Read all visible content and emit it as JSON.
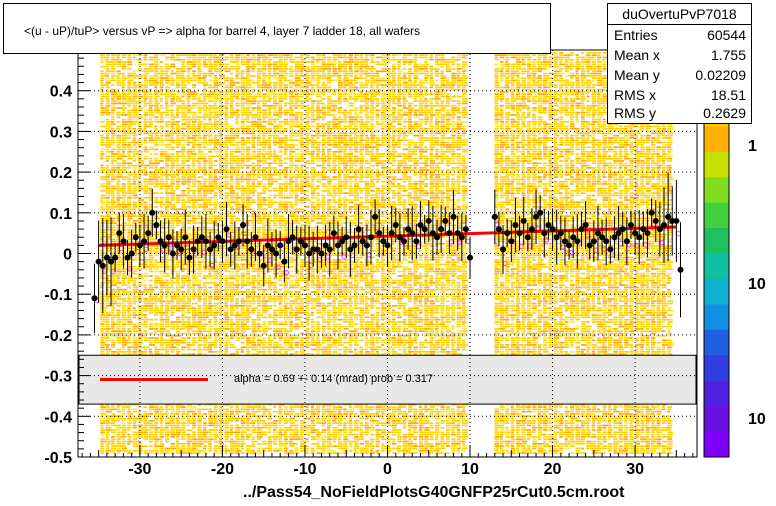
{
  "title": "<(u - uP)/tuP> versus   vP => alpha for barrel 4, layer 7 ladder 18, all wafers",
  "stats": {
    "name": "duOvertuPvP7018",
    "rows": [
      {
        "key": "Entries",
        "value": "60544"
      },
      {
        "key": "Mean x",
        "value": "1.755"
      },
      {
        "key": "Mean y",
        "value": "0.02209"
      },
      {
        "key": "RMS x",
        "value": "18.51"
      },
      {
        "key": "RMS y",
        "value": "0.2629"
      }
    ]
  },
  "fit_text": "alpha =    0.69 +-  0.14 (mrad) prob = 0.317",
  "footer": "../Pass54_NoFieldPlotsG40GNFP25rCut0.5cm.root",
  "colors": {
    "fit": "#ff0000",
    "points": "#000000",
    "open_markers": "#ff44ff",
    "grid": "#000000"
  },
  "chart_data": {
    "type": "scatter",
    "x_ticks": [
      "-30",
      "-20",
      "-10",
      "0",
      "10",
      "20",
      "30"
    ],
    "y_ticks": [
      "-0.5",
      "-0.4",
      "-0.3",
      "-0.2",
      "-0.1",
      "0",
      "0.1",
      "0.2",
      "0.3",
      "0.4"
    ],
    "z_ticks": [
      "1",
      "10",
      "10"
    ],
    "xlim": [
      -37.5,
      37.5
    ],
    "ylim": [
      -0.5,
      0.5
    ],
    "grid": true,
    "fit": {
      "x": [
        -35,
        35
      ],
      "y": [
        0.02,
        0.065
      ]
    },
    "gap_x": [
      9.8,
      12.8
    ],
    "points": [
      [
        -35.5,
        -0.11
      ],
      [
        -35.0,
        -0.02
      ],
      [
        -34.5,
        -0.03
      ],
      [
        -34.0,
        -0.01
      ],
      [
        -33.5,
        -0.02
      ],
      [
        -33.0,
        -0.01
      ],
      [
        -32.5,
        0.05
      ],
      [
        -32.0,
        0.03
      ],
      [
        -31.5,
        -0.01
      ],
      [
        -31.0,
        0.0
      ],
      [
        -30.5,
        0.04
      ],
      [
        -30.0,
        0.02
      ],
      [
        -29.5,
        0.03
      ],
      [
        -29.0,
        0.05
      ],
      [
        -28.5,
        0.1
      ],
      [
        -28.0,
        0.07
      ],
      [
        -27.5,
        0.03
      ],
      [
        -27.0,
        0.02
      ],
      [
        -26.5,
        0.04
      ],
      [
        -26.0,
        0.0
      ],
      [
        -25.5,
        0.02
      ],
      [
        -25.0,
        0.01
      ],
      [
        -24.5,
        0.04
      ],
      [
        -24.0,
        -0.01
      ],
      [
        -23.5,
        0.01
      ],
      [
        -23.0,
        0.03
      ],
      [
        -22.5,
        0.04
      ],
      [
        -22.0,
        0.03
      ],
      [
        -21.5,
        0.01
      ],
      [
        -21.0,
        0.02
      ],
      [
        -20.5,
        0.04
      ],
      [
        -20.0,
        0.03
      ],
      [
        -19.5,
        0.06
      ],
      [
        -19.0,
        0.01
      ],
      [
        -18.5,
        0.02
      ],
      [
        -18.0,
        0.03
      ],
      [
        -17.5,
        0.07
      ],
      [
        -17.0,
        0.03
      ],
      [
        -16.5,
        0.01
      ],
      [
        -16.0,
        0.04
      ],
      [
        -15.5,
        0.0
      ],
      [
        -15.0,
        -0.03
      ],
      [
        -14.5,
        0.02
      ],
      [
        -14.0,
        0.01
      ],
      [
        -13.5,
        0.0
      ],
      [
        -13.0,
        0.02
      ],
      [
        -12.5,
        -0.02
      ],
      [
        -12.0,
        0.03
      ],
      [
        -11.5,
        0.04
      ],
      [
        -11.0,
        0.01
      ],
      [
        -10.5,
        0.03
      ],
      [
        -10.0,
        0.02
      ],
      [
        -9.5,
        0.0
      ],
      [
        -9.0,
        0.01
      ],
      [
        -8.5,
        0.01
      ],
      [
        -8.0,
        0.0
      ],
      [
        -7.5,
        0.02
      ],
      [
        -7.0,
        0.01
      ],
      [
        -6.5,
        0.05
      ],
      [
        -6.0,
        0.02
      ],
      [
        -5.5,
        0.03
      ],
      [
        -5.0,
        0.04
      ],
      [
        -4.5,
        0.01
      ],
      [
        -4.0,
        0.02
      ],
      [
        -3.5,
        0.06
      ],
      [
        -3.0,
        0.03
      ],
      [
        -2.5,
        0.02
      ],
      [
        -2.0,
        0.04
      ],
      [
        -1.5,
        0.09
      ],
      [
        -1.0,
        0.05
      ],
      [
        -0.5,
        0.03
      ],
      [
        0.0,
        0.02
      ],
      [
        0.5,
        0.05
      ],
      [
        1.0,
        0.07
      ],
      [
        1.5,
        0.04
      ],
      [
        2.0,
        0.03
      ],
      [
        2.5,
        0.06
      ],
      [
        3.0,
        0.05
      ],
      [
        3.5,
        0.03
      ],
      [
        4.0,
        0.07
      ],
      [
        4.5,
        0.06
      ],
      [
        5.0,
        0.08
      ],
      [
        5.5,
        0.05
      ],
      [
        6.0,
        0.04
      ],
      [
        6.5,
        0.06
      ],
      [
        7.0,
        0.08
      ],
      [
        7.5,
        0.05
      ],
      [
        8.0,
        0.09
      ],
      [
        8.5,
        0.05
      ],
      [
        9.0,
        0.04
      ],
      [
        9.5,
        0.06
      ],
      [
        10.0,
        -0.01
      ],
      [
        13.0,
        0.09
      ],
      [
        13.5,
        0.06
      ],
      [
        14.0,
        0.01
      ],
      [
        14.5,
        0.05
      ],
      [
        15.0,
        0.03
      ],
      [
        15.5,
        0.07
      ],
      [
        16.0,
        0.05
      ],
      [
        16.5,
        0.08
      ],
      [
        17.0,
        0.04
      ],
      [
        17.5,
        0.06
      ],
      [
        18.0,
        0.09
      ],
      [
        18.5,
        0.1
      ],
      [
        19.0,
        0.05
      ],
      [
        19.5,
        0.07
      ],
      [
        20.0,
        0.06
      ],
      [
        20.5,
        0.04
      ],
      [
        21.0,
        0.05
      ],
      [
        21.5,
        0.03
      ],
      [
        22.0,
        0.02
      ],
      [
        22.5,
        0.04
      ],
      [
        23.0,
        0.03
      ],
      [
        23.5,
        0.06
      ],
      [
        24.0,
        0.07
      ],
      [
        24.5,
        0.02
      ],
      [
        25.0,
        0.03
      ],
      [
        25.5,
        0.05
      ],
      [
        26.0,
        0.04
      ],
      [
        26.5,
        0.03
      ],
      [
        27.0,
        0.01
      ],
      [
        27.5,
        0.04
      ],
      [
        28.0,
        0.05
      ],
      [
        28.5,
        0.06
      ],
      [
        29.0,
        0.03
      ],
      [
        29.5,
        0.07
      ],
      [
        30.0,
        0.05
      ],
      [
        30.5,
        0.04
      ],
      [
        31.0,
        0.06
      ],
      [
        31.5,
        0.05
      ],
      [
        32.0,
        0.1
      ],
      [
        32.5,
        0.08
      ],
      [
        33.0,
        0.06
      ],
      [
        33.5,
        0.07
      ],
      [
        34.0,
        0.09
      ],
      [
        34.5,
        0.08
      ],
      [
        35.0,
        0.08
      ],
      [
        35.5,
        -0.04
      ]
    ]
  }
}
